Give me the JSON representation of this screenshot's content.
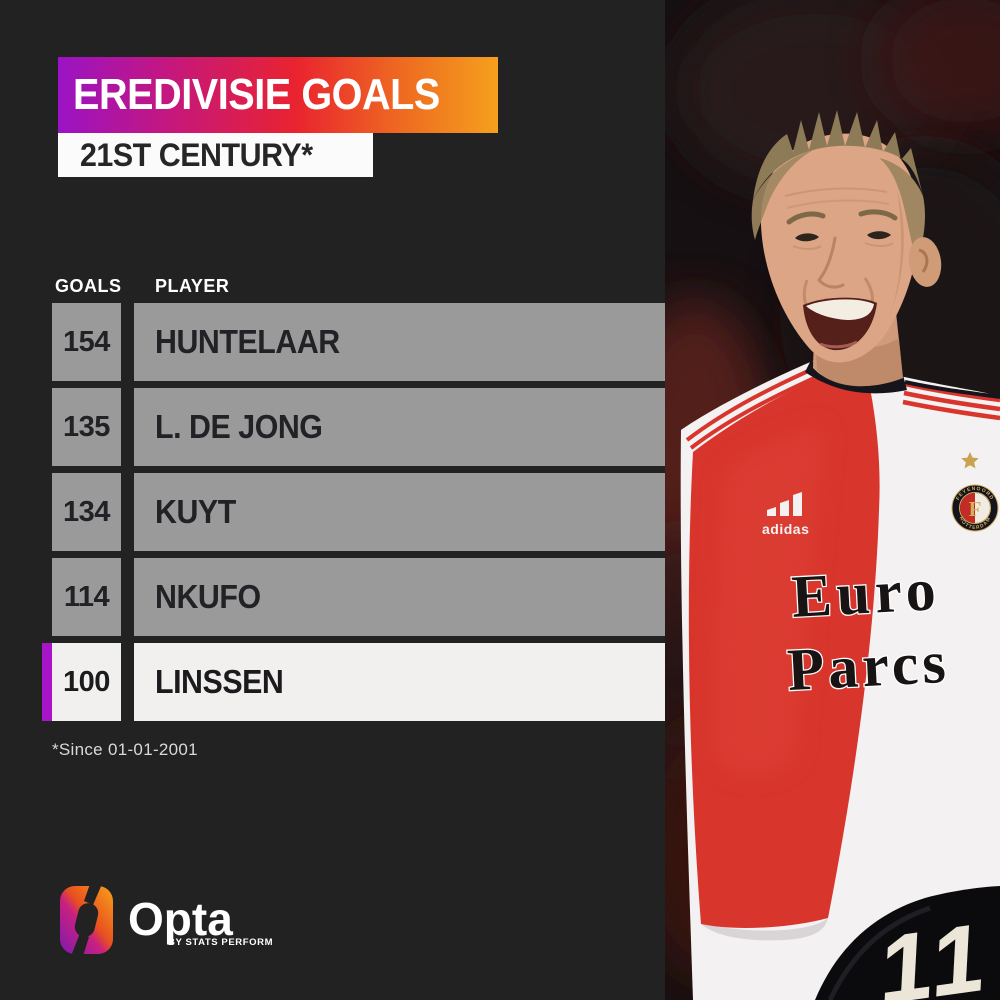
{
  "header": {
    "title": "EREDIVISIE GOALS",
    "subtitle": "21ST CENTURY*"
  },
  "table": {
    "goals_header": "GOALS",
    "player_header": "PLAYER",
    "rows": [
      {
        "goals": "154",
        "player": "HUNTELAAR",
        "highlighted": false
      },
      {
        "goals": "135",
        "player": "L. DE JONG",
        "highlighted": false
      },
      {
        "goals": "134",
        "player": "KUYT",
        "highlighted": false
      },
      {
        "goals": "114",
        "player": "NKUFO",
        "highlighted": false
      },
      {
        "goals": "100",
        "player": "LINSSEN",
        "highlighted": true
      }
    ]
  },
  "footnote": "*Since 01-01-2001",
  "branding": {
    "name": "Opta",
    "tagline": "BY STATS PERFORM"
  },
  "photo": {
    "kit_brand": "adidas",
    "sponsor_line1": "Euro",
    "sponsor_line2": "Parcs",
    "crest_club": "FEYENOORD",
    "crest_city": "ROTTERDAM",
    "crest_letter": "F",
    "shorts_number": "11"
  },
  "colors": {
    "background": "#232222",
    "banner_gradient_start": "#9a13c4",
    "banner_gradient_mid": "#e9232f",
    "banner_gradient_end": "#f5a01d",
    "row_gray": "#9a9a9b",
    "highlight_white": "#f1f0ee",
    "highlight_purple": "#a814c9",
    "kit_red": "#d8352c",
    "kit_white": "#f3f1f2"
  },
  "chart_data": {
    "type": "table",
    "title": "EREDIVISIE GOALS",
    "subtitle": "21ST CENTURY*",
    "columns": [
      "GOALS",
      "PLAYER"
    ],
    "rows": [
      [
        154,
        "HUNTELAAR"
      ],
      [
        135,
        "L. DE JONG"
      ],
      [
        134,
        "KUYT"
      ],
      [
        114,
        "NKUFO"
      ],
      [
        100,
        "LINSSEN"
      ]
    ],
    "highlighted_player": "LINSSEN",
    "footnote": "*Since 01-01-2001"
  }
}
